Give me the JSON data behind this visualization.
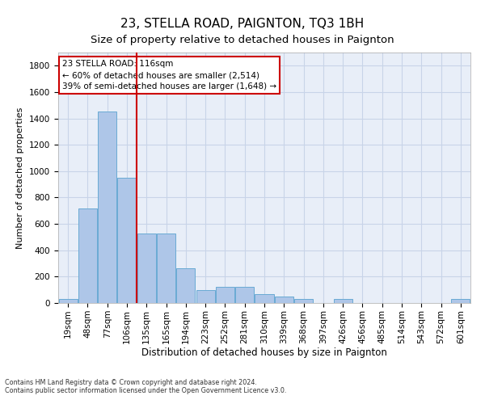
{
  "title": "23, STELLA ROAD, PAIGNTON, TQ3 1BH",
  "subtitle": "Size of property relative to detached houses in Paignton",
  "xlabel": "Distribution of detached houses by size in Paignton",
  "ylabel": "Number of detached properties",
  "bin_labels": [
    "19sqm",
    "48sqm",
    "77sqm",
    "106sqm",
    "135sqm",
    "165sqm",
    "194sqm",
    "223sqm",
    "252sqm",
    "281sqm",
    "310sqm",
    "339sqm",
    "368sqm",
    "397sqm",
    "426sqm",
    "456sqm",
    "485sqm",
    "514sqm",
    "543sqm",
    "572sqm",
    "601sqm"
  ],
  "bar_values": [
    30,
    720,
    1450,
    950,
    530,
    530,
    265,
    100,
    120,
    120,
    70,
    50,
    30,
    0,
    30,
    0,
    0,
    0,
    0,
    0,
    30
  ],
  "bar_color": "#aec6e8",
  "bar_edge_color": "#6aaad4",
  "grid_color": "#c8d4e8",
  "background_color": "#e8eef8",
  "property_line_x": 3.5,
  "property_line_color": "#cc0000",
  "annotation_text": "23 STELLA ROAD: 116sqm\n← 60% of detached houses are smaller (2,514)\n39% of semi-detached houses are larger (1,648) →",
  "annotation_box_color": "#ffffff",
  "annotation_box_edge": "#cc0000",
  "ylim": [
    0,
    1900
  ],
  "yticks": [
    0,
    200,
    400,
    600,
    800,
    1000,
    1200,
    1400,
    1600,
    1800
  ],
  "footer_line1": "Contains HM Land Registry data © Crown copyright and database right 2024.",
  "footer_line2": "Contains public sector information licensed under the Open Government Licence v3.0.",
  "title_fontsize": 11,
  "subtitle_fontsize": 9.5,
  "tick_fontsize": 7.5,
  "ylabel_fontsize": 8,
  "xlabel_fontsize": 8.5,
  "annotation_fontsize": 7.5,
  "footer_fontsize": 5.8
}
